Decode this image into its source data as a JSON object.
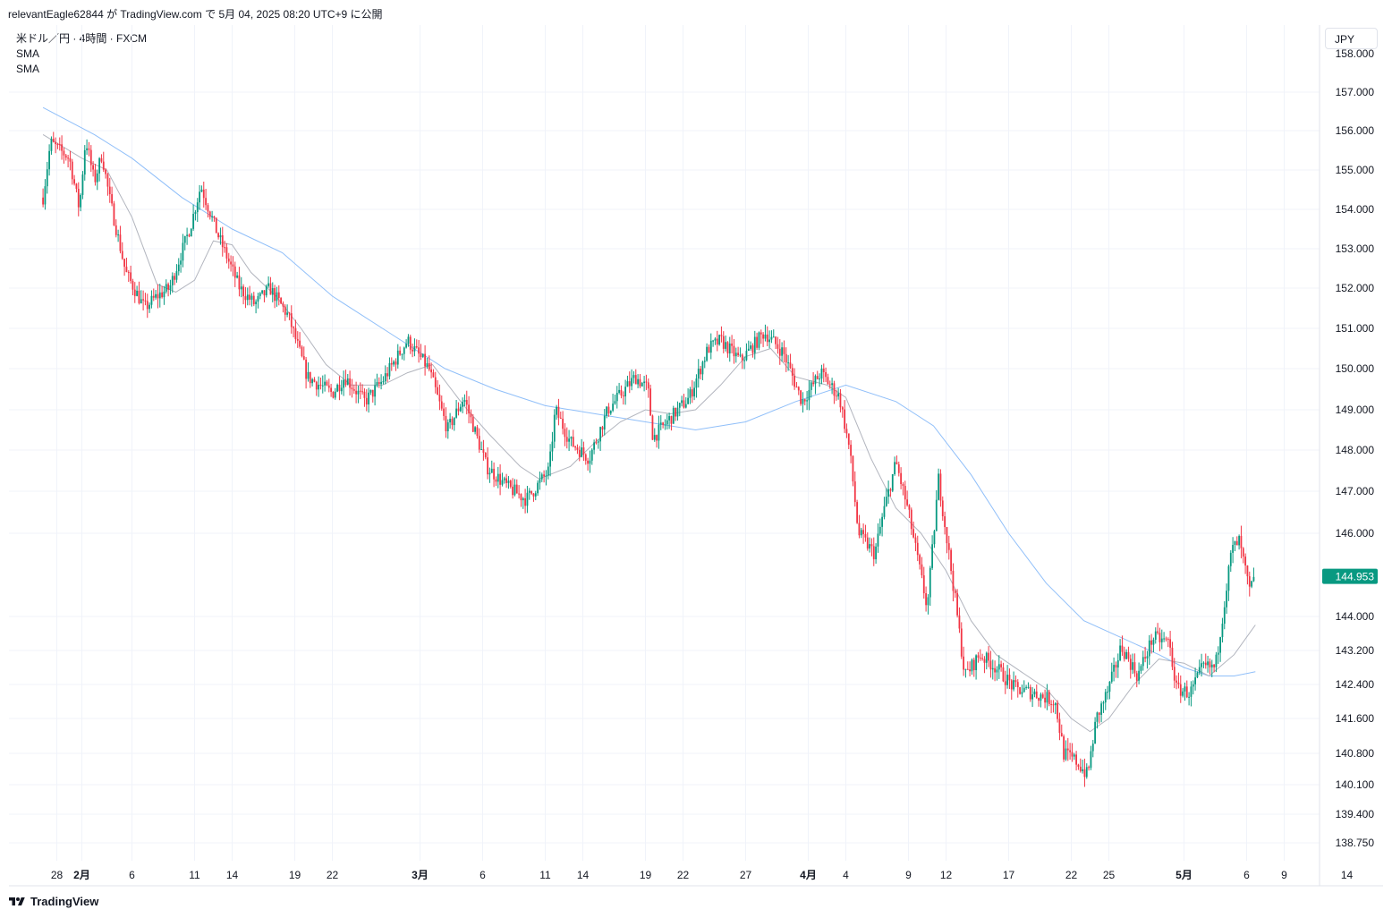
{
  "caption": "relevantEagle62844 が TradingView.com で 5月 04, 2025 08:20 UTC+9 に公開",
  "legend": {
    "symbol": "米ドル／円 · 4時間 · FXCM",
    "ind1": "SMA",
    "ind2": "SMA"
  },
  "currency_button": "JPY",
  "footer_brand": "TradingView",
  "colors": {
    "up": "#089981",
    "down": "#f23645",
    "sma_fast": "#b2b5be",
    "sma_slow": "#90bff9",
    "grid": "#f0f3fa",
    "price_tag": "#089981"
  },
  "chart_data": {
    "type": "candlestick",
    "symbol": "USD/JPY",
    "interval": "4h",
    "price_axis": {
      "ticks": [
        {
          "value": 157.0,
          "label": "157.000"
        },
        {
          "value": 156.0,
          "label": "156.000"
        },
        {
          "value": 155.0,
          "label": "155.000"
        },
        {
          "value": 154.0,
          "label": "154.000"
        },
        {
          "value": 153.0,
          "label": "153.000"
        },
        {
          "value": 152.0,
          "label": "152.000"
        },
        {
          "value": 151.0,
          "label": "151.000"
        },
        {
          "value": 150.0,
          "label": "150.000"
        },
        {
          "value": 149.0,
          "label": "149.000"
        },
        {
          "value": 148.0,
          "label": "148.000"
        },
        {
          "value": 147.0,
          "label": "147.000"
        },
        {
          "value": 146.0,
          "label": "146.000"
        },
        {
          "value": 144.0,
          "label": "144.000"
        },
        {
          "value": 143.2,
          "label": "143.200"
        },
        {
          "value": 142.4,
          "label": "142.400"
        },
        {
          "value": 141.6,
          "label": "141.600"
        },
        {
          "value": 140.8,
          "label": "140.800"
        },
        {
          "value": 140.1,
          "label": "140.100"
        },
        {
          "value": 139.4,
          "label": "139.400"
        },
        {
          "value": 138.75,
          "label": "138.750"
        }
      ],
      "partial_top_label": "158.000",
      "last_price": 144.953,
      "last_price_label": "144.953"
    },
    "time_axis": {
      "ticks": [
        {
          "label": "28",
          "day": -1,
          "bold": false
        },
        {
          "label": "2月",
          "day": 1,
          "bold": true
        },
        {
          "label": "6",
          "day": 5,
          "bold": false
        },
        {
          "label": "11",
          "day": 10,
          "bold": false
        },
        {
          "label": "14",
          "day": 13,
          "bold": false
        },
        {
          "label": "19",
          "day": 18,
          "bold": false
        },
        {
          "label": "22",
          "day": 21,
          "bold": false
        },
        {
          "label": "3月",
          "day": 28,
          "bold": true
        },
        {
          "label": "6",
          "day": 33,
          "bold": false
        },
        {
          "label": "11",
          "day": 38,
          "bold": false
        },
        {
          "label": "14",
          "day": 41,
          "bold": false
        },
        {
          "label": "19",
          "day": 46,
          "bold": false
        },
        {
          "label": "22",
          "day": 49,
          "bold": false
        },
        {
          "label": "27",
          "day": 54,
          "bold": false
        },
        {
          "label": "4月",
          "day": 59,
          "bold": true
        },
        {
          "label": "4",
          "day": 62,
          "bold": false
        },
        {
          "label": "9",
          "day": 67,
          "bold": false
        },
        {
          "label": "12",
          "day": 70,
          "bold": false
        },
        {
          "label": "17",
          "day": 75,
          "bold": false
        },
        {
          "label": "22",
          "day": 80,
          "bold": false
        },
        {
          "label": "25",
          "day": 83,
          "bold": false
        },
        {
          "label": "5月",
          "day": 89,
          "bold": true
        },
        {
          "label": "6",
          "day": 94,
          "bold": false
        },
        {
          "label": "9",
          "day": 97,
          "bold": false
        },
        {
          "label": "14",
          "day": 102,
          "bold": false
        }
      ]
    },
    "price_path": [
      {
        "day": -2.1,
        "price": 154.3
      },
      {
        "day": -1.5,
        "price": 155.7
      },
      {
        "day": 0.0,
        "price": 155.3
      },
      {
        "day": 0.8,
        "price": 154.0
      },
      {
        "day": 1.3,
        "price": 155.8
      },
      {
        "day": 2.0,
        "price": 154.7
      },
      {
        "day": 2.6,
        "price": 155.4
      },
      {
        "day": 3.2,
        "price": 154.3
      },
      {
        "day": 4.5,
        "price": 152.4
      },
      {
        "day": 6.0,
        "price": 151.5
      },
      {
        "day": 7.0,
        "price": 151.8
      },
      {
        "day": 8.0,
        "price": 152.0
      },
      {
        "day": 9.7,
        "price": 153.6
      },
      {
        "day": 10.5,
        "price": 154.6
      },
      {
        "day": 11.8,
        "price": 153.4
      },
      {
        "day": 13.6,
        "price": 152.0
      },
      {
        "day": 14.8,
        "price": 151.6
      },
      {
        "day": 16.0,
        "price": 152.0
      },
      {
        "day": 17.5,
        "price": 151.3
      },
      {
        "day": 19.0,
        "price": 149.8
      },
      {
        "day": 21.0,
        "price": 149.4
      },
      {
        "day": 22.0,
        "price": 149.8
      },
      {
        "day": 23.6,
        "price": 149.2
      },
      {
        "day": 25.0,
        "price": 149.7
      },
      {
        "day": 27.0,
        "price": 150.7
      },
      {
        "day": 28.7,
        "price": 150.0
      },
      {
        "day": 30.2,
        "price": 148.5
      },
      {
        "day": 31.5,
        "price": 149.3
      },
      {
        "day": 33.3,
        "price": 147.6
      },
      {
        "day": 35.0,
        "price": 147.1
      },
      {
        "day": 36.5,
        "price": 146.8
      },
      {
        "day": 38.3,
        "price": 147.5
      },
      {
        "day": 38.8,
        "price": 149.0
      },
      {
        "day": 40.0,
        "price": 148.2
      },
      {
        "day": 41.5,
        "price": 147.8
      },
      {
        "day": 43.0,
        "price": 149.0
      },
      {
        "day": 45.2,
        "price": 149.8
      },
      {
        "day": 46.2,
        "price": 149.5
      },
      {
        "day": 46.6,
        "price": 148.3
      },
      {
        "day": 48.0,
        "price": 148.8
      },
      {
        "day": 49.5,
        "price": 149.3
      },
      {
        "day": 51.0,
        "price": 150.5
      },
      {
        "day": 52.0,
        "price": 150.7
      },
      {
        "day": 53.6,
        "price": 150.2
      },
      {
        "day": 55.5,
        "price": 150.9
      },
      {
        "day": 57.0,
        "price": 150.4
      },
      {
        "day": 58.5,
        "price": 149.2
      },
      {
        "day": 60.0,
        "price": 149.9
      },
      {
        "day": 61.5,
        "price": 149.3
      },
      {
        "day": 62.3,
        "price": 148.0
      },
      {
        "day": 63.0,
        "price": 146.0
      },
      {
        "day": 64.3,
        "price": 145.5
      },
      {
        "day": 65.0,
        "price": 146.5
      },
      {
        "day": 66.0,
        "price": 147.7
      },
      {
        "day": 67.0,
        "price": 146.5
      },
      {
        "day": 68.5,
        "price": 144.2
      },
      {
        "day": 69.4,
        "price": 147.3
      },
      {
        "day": 70.6,
        "price": 144.7
      },
      {
        "day": 71.5,
        "price": 142.6
      },
      {
        "day": 72.7,
        "price": 143.1
      },
      {
        "day": 74.0,
        "price": 142.8
      },
      {
        "day": 75.5,
        "price": 142.3
      },
      {
        "day": 77.0,
        "price": 142.2
      },
      {
        "day": 78.7,
        "price": 142.0
      },
      {
        "day": 79.4,
        "price": 140.8
      },
      {
        "day": 80.5,
        "price": 140.6
      },
      {
        "day": 81.3,
        "price": 140.3
      },
      {
        "day": 82.0,
        "price": 141.6
      },
      {
        "day": 83.0,
        "price": 142.3
      },
      {
        "day": 84.0,
        "price": 143.3
      },
      {
        "day": 85.3,
        "price": 142.6
      },
      {
        "day": 86.5,
        "price": 143.5
      },
      {
        "day": 87.8,
        "price": 143.4
      },
      {
        "day": 88.4,
        "price": 142.3
      },
      {
        "day": 89.5,
        "price": 142.2
      },
      {
        "day": 90.5,
        "price": 142.8
      },
      {
        "day": 91.5,
        "price": 142.8
      },
      {
        "day": 92.3,
        "price": 144.5
      },
      {
        "day": 92.8,
        "price": 145.6
      },
      {
        "day": 93.4,
        "price": 145.8
      },
      {
        "day": 93.9,
        "price": 145.1
      },
      {
        "day": 94.2,
        "price": 144.6
      },
      {
        "day": 94.7,
        "price": 144.95
      }
    ],
    "sma_fast": [
      {
        "day": -2.1,
        "price": 155.9
      },
      {
        "day": 1.0,
        "price": 155.3
      },
      {
        "day": 3.0,
        "price": 155.0
      },
      {
        "day": 5.0,
        "price": 153.8
      },
      {
        "day": 7.0,
        "price": 152.1
      },
      {
        "day": 8.5,
        "price": 151.9
      },
      {
        "day": 10.0,
        "price": 152.2
      },
      {
        "day": 11.5,
        "price": 153.2
      },
      {
        "day": 13.0,
        "price": 153.1
      },
      {
        "day": 14.5,
        "price": 152.4
      },
      {
        "day": 16.5,
        "price": 151.8
      },
      {
        "day": 18.5,
        "price": 151.0
      },
      {
        "day": 20.5,
        "price": 150.1
      },
      {
        "day": 22.5,
        "price": 149.6
      },
      {
        "day": 25.0,
        "price": 149.6
      },
      {
        "day": 27.0,
        "price": 149.9
      },
      {
        "day": 29.0,
        "price": 150.1
      },
      {
        "day": 31.5,
        "price": 149.1
      },
      {
        "day": 33.5,
        "price": 148.4
      },
      {
        "day": 36.0,
        "price": 147.6
      },
      {
        "day": 37.5,
        "price": 147.3
      },
      {
        "day": 40.0,
        "price": 147.6
      },
      {
        "day": 42.0,
        "price": 148.2
      },
      {
        "day": 44.0,
        "price": 148.7
      },
      {
        "day": 46.0,
        "price": 149.0
      },
      {
        "day": 48.0,
        "price": 148.9
      },
      {
        "day": 50.0,
        "price": 149.0
      },
      {
        "day": 52.0,
        "price": 149.6
      },
      {
        "day": 54.0,
        "price": 150.3
      },
      {
        "day": 56.0,
        "price": 150.5
      },
      {
        "day": 58.0,
        "price": 149.8
      },
      {
        "day": 60.5,
        "price": 149.6
      },
      {
        "day": 62.0,
        "price": 149.3
      },
      {
        "day": 64.0,
        "price": 147.8
      },
      {
        "day": 66.0,
        "price": 146.6
      },
      {
        "day": 68.0,
        "price": 146.0
      },
      {
        "day": 70.0,
        "price": 145.1
      },
      {
        "day": 72.0,
        "price": 143.9
      },
      {
        "day": 74.0,
        "price": 143.1
      },
      {
        "day": 76.0,
        "price": 142.7
      },
      {
        "day": 78.0,
        "price": 142.3
      },
      {
        "day": 80.0,
        "price": 141.6
      },
      {
        "day": 81.5,
        "price": 141.3
      },
      {
        "day": 83.0,
        "price": 141.6
      },
      {
        "day": 85.0,
        "price": 142.4
      },
      {
        "day": 87.0,
        "price": 143.0
      },
      {
        "day": 89.0,
        "price": 142.9
      },
      {
        "day": 91.0,
        "price": 142.6
      },
      {
        "day": 93.0,
        "price": 143.1
      },
      {
        "day": 94.7,
        "price": 143.8
      }
    ],
    "sma_slow": [
      {
        "day": -2.1,
        "price": 156.6
      },
      {
        "day": 2.0,
        "price": 155.9
      },
      {
        "day": 5.0,
        "price": 155.3
      },
      {
        "day": 9.0,
        "price": 154.3
      },
      {
        "day": 13.0,
        "price": 153.5
      },
      {
        "day": 17.0,
        "price": 152.9
      },
      {
        "day": 21.0,
        "price": 151.8
      },
      {
        "day": 26.0,
        "price": 150.8
      },
      {
        "day": 30.0,
        "price": 150.0
      },
      {
        "day": 34.0,
        "price": 149.5
      },
      {
        "day": 38.0,
        "price": 149.1
      },
      {
        "day": 42.0,
        "price": 148.9
      },
      {
        "day": 46.0,
        "price": 148.7
      },
      {
        "day": 50.0,
        "price": 148.5
      },
      {
        "day": 54.0,
        "price": 148.7
      },
      {
        "day": 58.0,
        "price": 149.2
      },
      {
        "day": 62.0,
        "price": 149.6
      },
      {
        "day": 66.0,
        "price": 149.2
      },
      {
        "day": 69.0,
        "price": 148.6
      },
      {
        "day": 72.0,
        "price": 147.4
      },
      {
        "day": 75.0,
        "price": 146.0
      },
      {
        "day": 78.0,
        "price": 144.8
      },
      {
        "day": 81.0,
        "price": 143.9
      },
      {
        "day": 84.0,
        "price": 143.5
      },
      {
        "day": 87.0,
        "price": 143.1
      },
      {
        "day": 89.0,
        "price": 142.8
      },
      {
        "day": 91.0,
        "price": 142.6
      },
      {
        "day": 93.0,
        "price": 142.6
      },
      {
        "day": 94.7,
        "price": 142.7
      }
    ]
  }
}
